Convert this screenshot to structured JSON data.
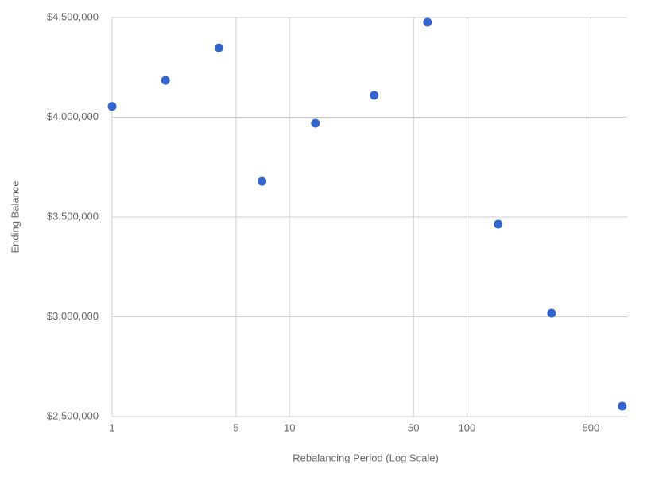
{
  "chart_data": {
    "type": "scatter",
    "x_label": "Rebalancing Period (Log Scale)",
    "y_label": "Ending Balance",
    "x": [
      1,
      2,
      4,
      7,
      14,
      30,
      60,
      150,
      300,
      750
    ],
    "series": [
      {
        "color": "#3366cc",
        "values": [
          4055000,
          4185000,
          4348000,
          3679000,
          3970000,
          4110000,
          4476000,
          3464000,
          3018000,
          2552000
        ]
      }
    ],
    "xscale": "log",
    "xlim": [
      1,
      800
    ],
    "xticks": [
      1,
      5,
      10,
      50,
      100,
      500
    ],
    "ylim": [
      2500000,
      4500000
    ],
    "yticks": [
      {
        "value": 2500000,
        "label": "$2,500,000"
      },
      {
        "value": 3000000,
        "label": "$3,000,000"
      },
      {
        "value": 3500000,
        "label": "$3,500,000"
      },
      {
        "value": 4000000,
        "label": "$4,000,000"
      },
      {
        "value": 4500000,
        "label": "$4,500,000"
      }
    ],
    "grid": true
  }
}
